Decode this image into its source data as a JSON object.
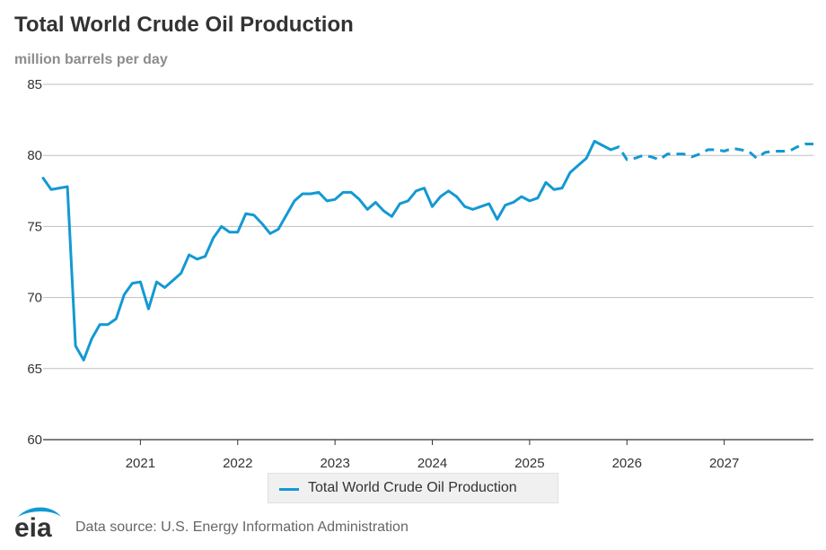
{
  "title": "Total World Crude Oil Production",
  "subtitle": "million barrels per day",
  "legend": {
    "label": "Total World Crude Oil Production",
    "color": "#1399d3"
  },
  "source": "Data source: U.S. Energy Information Administration",
  "logo_text": "eia",
  "chart_data": {
    "type": "line",
    "title": "Total World Crude Oil Production",
    "ylabel": "million barrels per day",
    "ylim": [
      60,
      85
    ],
    "yticks": [
      60,
      65,
      70,
      75,
      80,
      85
    ],
    "xlim": [
      2020.0,
      2027.9167
    ],
    "xticks": [
      {
        "value": 2021,
        "label": "2021"
      },
      {
        "value": 2022,
        "label": "2022"
      },
      {
        "value": 2023,
        "label": "2023"
      },
      {
        "value": 2024,
        "label": "2024"
      },
      {
        "value": 2025,
        "label": "2025"
      },
      {
        "value": 2026,
        "label": "2026"
      },
      {
        "value": 2027,
        "label": "2027"
      }
    ],
    "start": "2020-01",
    "frequency": "monthly",
    "forecast_start_index": 71,
    "series": [
      {
        "name": "Total World Crude Oil Production",
        "color": "#1399d3",
        "values": [
          78.4,
          77.6,
          77.7,
          77.8,
          66.6,
          65.6,
          67.1,
          68.1,
          68.1,
          68.5,
          70.2,
          71.0,
          71.1,
          69.2,
          71.1,
          70.7,
          71.2,
          71.7,
          73.0,
          72.7,
          72.9,
          74.2,
          75.0,
          74.6,
          74.6,
          75.9,
          75.8,
          75.2,
          74.5,
          74.8,
          75.8,
          76.8,
          77.3,
          77.3,
          77.4,
          76.8,
          76.9,
          77.4,
          77.4,
          76.9,
          76.2,
          76.7,
          76.1,
          75.7,
          76.6,
          76.8,
          77.5,
          77.7,
          76.4,
          77.1,
          77.5,
          77.1,
          76.4,
          76.2,
          76.4,
          76.6,
          75.5,
          76.5,
          76.7,
          77.1,
          76.8,
          77.0,
          78.1,
          77.6,
          77.7,
          78.8,
          79.3,
          79.8,
          81.0,
          80.7,
          80.4,
          80.6,
          79.7,
          79.8,
          80.0,
          79.9,
          79.7,
          80.1,
          80.1,
          80.1,
          79.9,
          80.1,
          80.4,
          80.4,
          80.3,
          80.5,
          80.4,
          80.3,
          79.8,
          80.2,
          80.3,
          80.3,
          80.3,
          80.6,
          80.8,
          80.8
        ]
      }
    ]
  }
}
